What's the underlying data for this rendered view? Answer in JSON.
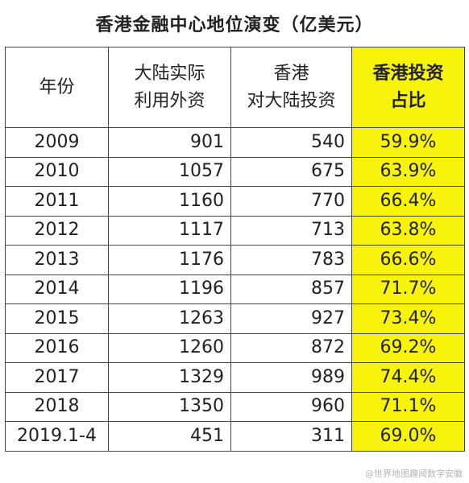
{
  "chart_data": {
    "type": "table",
    "title": "香港金融中心地位演变（亿美元）",
    "columns": [
      "年份",
      "大陆实际\n利用外资",
      "香港\n对大陆投资",
      "香港投资\n占比"
    ],
    "rows": [
      [
        "2009",
        "901",
        "540",
        "59.9%"
      ],
      [
        "2010",
        "1057",
        "675",
        "63.9%"
      ],
      [
        "2011",
        "1160",
        "770",
        "66.4%"
      ],
      [
        "2012",
        "1117",
        "713",
        "63.8%"
      ],
      [
        "2013",
        "1176",
        "783",
        "66.6%"
      ],
      [
        "2014",
        "1196",
        "857",
        "71.7%"
      ],
      [
        "2015",
        "1263",
        "927",
        "73.4%"
      ],
      [
        "2016",
        "1260",
        "872",
        "69.2%"
      ],
      [
        "2017",
        "1329",
        "989",
        "74.4%"
      ],
      [
        "2018",
        "1350",
        "960",
        "71.1%"
      ],
      [
        "2019.1-4",
        "451",
        "311",
        "69.0%"
      ]
    ],
    "highlight_column": 3,
    "highlight_color": "#f7f30a"
  },
  "watermark": "@世界地图趣闻数字安徽"
}
